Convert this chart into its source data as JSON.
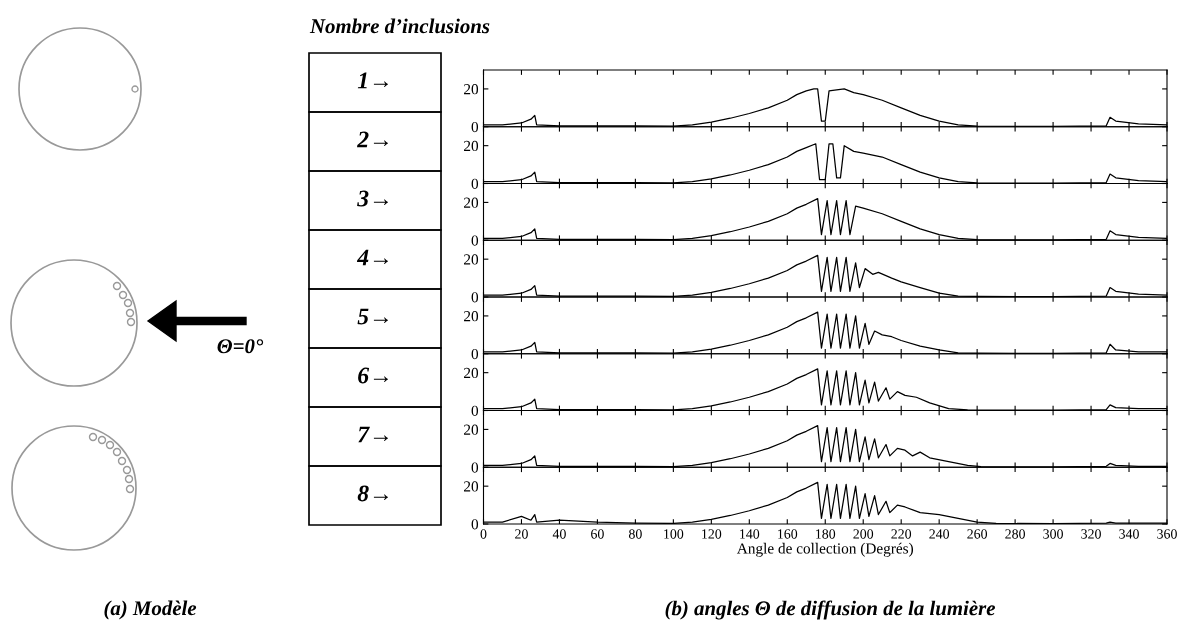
{
  "chart_data": [
    {
      "type": "line",
      "title": "Nombre d’inclusions",
      "annotations": [
        "1→",
        "Θ=0°",
        "(a) Modèle",
        "(b) angles Θ de diffusion de la lumière"
      ],
      "x": [
        0,
        10,
        20,
        25,
        27,
        28,
        40,
        60,
        80,
        100,
        110,
        120,
        130,
        140,
        150,
        160,
        165,
        170,
        174,
        176,
        178,
        180,
        182,
        190,
        195,
        200,
        210,
        220,
        230,
        240,
        250,
        260,
        300,
        328,
        330,
        333,
        345,
        360
      ],
      "series": [
        {
          "color": "#000000",
          "values": [
            1,
            1,
            2,
            4,
            6,
            1,
            0.5,
            0.5,
            0.5,
            0.3,
            1,
            2.5,
            4.5,
            7,
            10,
            14,
            17,
            19,
            20,
            20,
            3,
            3,
            19,
            20,
            18,
            17,
            14,
            10,
            6,
            3,
            1,
            0.3,
            0.2,
            0.5,
            5,
            3,
            1.5,
            1
          ]
        }
      ],
      "xlim": [
        0,
        360
      ],
      "ylim": [
        0,
        30
      ],
      "xticks": [
        0,
        20,
        40,
        60,
        80,
        100,
        120,
        140,
        160,
        180,
        200,
        220,
        240,
        260,
        280,
        300,
        320,
        340,
        360
      ],
      "yticks": [
        0,
        20
      ],
      "tick_labels": "y"
    },
    {
      "type": "line",
      "annotations": [
        "2→"
      ],
      "x": [
        0,
        10,
        20,
        25,
        27,
        28,
        40,
        60,
        80,
        100,
        110,
        120,
        130,
        140,
        150,
        160,
        165,
        170,
        175,
        177,
        180,
        182,
        184,
        186,
        188,
        190,
        195,
        200,
        210,
        220,
        230,
        240,
        250,
        260,
        300,
        328,
        330,
        333,
        345,
        360
      ],
      "series": [
        {
          "color": "#000000",
          "values": [
            1,
            1,
            2,
            4,
            6,
            1,
            0.5,
            0.5,
            0.5,
            0.3,
            1,
            2.5,
            4.5,
            7,
            10,
            14,
            17,
            19,
            21,
            2,
            2,
            21,
            21,
            3,
            3,
            20,
            17,
            16,
            14,
            10,
            6,
            3,
            1,
            0.3,
            0.2,
            0.5,
            5,
            3,
            1.5,
            1
          ]
        }
      ],
      "xlim": [
        0,
        360
      ],
      "ylim": [
        0,
        30
      ],
      "xticks": [
        0,
        20,
        40,
        60,
        80,
        100,
        120,
        140,
        160,
        180,
        200,
        220,
        240,
        260,
        280,
        300,
        320,
        340,
        360
      ],
      "yticks": [
        0,
        20
      ],
      "tick_labels": "y"
    },
    {
      "type": "line",
      "annotations": [
        "3→"
      ],
      "x": [
        0,
        10,
        20,
        25,
        27,
        28,
        40,
        60,
        80,
        100,
        110,
        120,
        130,
        140,
        150,
        160,
        165,
        170,
        176,
        178,
        181,
        183,
        186,
        188,
        191,
        193,
        196,
        200,
        210,
        220,
        230,
        240,
        250,
        260,
        300,
        328,
        330,
        333,
        345,
        360
      ],
      "series": [
        {
          "color": "#000000",
          "values": [
            1,
            1,
            2,
            4,
            6,
            1,
            0.5,
            0.5,
            0.5,
            0.3,
            1,
            2.5,
            4.5,
            7,
            10,
            14,
            17,
            19,
            22,
            3,
            21,
            3,
            21,
            3,
            21,
            3,
            18,
            17,
            14,
            10,
            6,
            3,
            1,
            0.3,
            0.2,
            0.5,
            5,
            3,
            1.5,
            1
          ]
        }
      ],
      "xlim": [
        0,
        360
      ],
      "ylim": [
        0,
        30
      ],
      "xticks": [
        0,
        20,
        40,
        60,
        80,
        100,
        120,
        140,
        160,
        180,
        200,
        220,
        240,
        260,
        280,
        300,
        320,
        340,
        360
      ],
      "yticks": [
        0,
        20
      ],
      "tick_labels": "y"
    },
    {
      "type": "line",
      "annotations": [
        "4→"
      ],
      "x": [
        0,
        10,
        20,
        25,
        27,
        28,
        40,
        60,
        80,
        100,
        110,
        120,
        130,
        140,
        150,
        160,
        165,
        170,
        176,
        178,
        181,
        183,
        186,
        188,
        191,
        193,
        196,
        198,
        201,
        205,
        208,
        215,
        220,
        230,
        240,
        250,
        260,
        300,
        328,
        330,
        333,
        345,
        360
      ],
      "series": [
        {
          "color": "#000000",
          "values": [
            1,
            1,
            2,
            4,
            6,
            1,
            0.5,
            0.5,
            0.5,
            0.3,
            1,
            2.5,
            4.5,
            7,
            10,
            14,
            17,
            19,
            22,
            3,
            21,
            3,
            21,
            3,
            21,
            3,
            18,
            5,
            15,
            12,
            13,
            10,
            8,
            5,
            2,
            0.5,
            0.3,
            0.2,
            0.5,
            5,
            3,
            1.5,
            1
          ]
        }
      ],
      "xlim": [
        0,
        360
      ],
      "ylim": [
        0,
        30
      ],
      "xticks": [
        0,
        20,
        40,
        60,
        80,
        100,
        120,
        140,
        160,
        180,
        200,
        220,
        240,
        260,
        280,
        300,
        320,
        340,
        360
      ],
      "yticks": [
        0,
        20
      ],
      "tick_labels": "y"
    },
    {
      "type": "line",
      "annotations": [
        "5→"
      ],
      "x": [
        0,
        10,
        20,
        25,
        27,
        28,
        40,
        60,
        80,
        100,
        110,
        120,
        130,
        140,
        150,
        160,
        165,
        170,
        176,
        178,
        181,
        183,
        186,
        188,
        191,
        193,
        196,
        198,
        201,
        203,
        206,
        210,
        215,
        220,
        230,
        240,
        250,
        260,
        300,
        328,
        330,
        333,
        345,
        360
      ],
      "series": [
        {
          "color": "#000000",
          "values": [
            1,
            1,
            2,
            4,
            6,
            1,
            0.5,
            0.5,
            0.5,
            0.3,
            1,
            2.5,
            4.5,
            7,
            10,
            14,
            17,
            19,
            22,
            3,
            21,
            3,
            21,
            3,
            21,
            3,
            20,
            3,
            16,
            5,
            12,
            10,
            9,
            7,
            4,
            2,
            0.5,
            0.3,
            0.2,
            0.5,
            5,
            2,
            1,
            1
          ]
        }
      ],
      "xlim": [
        0,
        360
      ],
      "ylim": [
        0,
        30
      ],
      "xticks": [
        0,
        20,
        40,
        60,
        80,
        100,
        120,
        140,
        160,
        180,
        200,
        220,
        240,
        260,
        280,
        300,
        320,
        340,
        360
      ],
      "yticks": [
        0,
        20
      ],
      "tick_labels": "y"
    },
    {
      "type": "line",
      "annotations": [
        "6→"
      ],
      "x": [
        0,
        10,
        20,
        25,
        27,
        28,
        40,
        60,
        80,
        100,
        110,
        120,
        130,
        140,
        150,
        160,
        165,
        170,
        176,
        178,
        181,
        183,
        186,
        188,
        191,
        193,
        196,
        198,
        201,
        203,
        206,
        208,
        212,
        214,
        218,
        222,
        228,
        235,
        245,
        255,
        300,
        328,
        330,
        333,
        345,
        360
      ],
      "series": [
        {
          "color": "#000000",
          "values": [
            1,
            1,
            2,
            4,
            6,
            1,
            0.5,
            0.5,
            0.5,
            0.3,
            1,
            2.5,
            4.5,
            7,
            10,
            14,
            17,
            19,
            22,
            3,
            21,
            3,
            21,
            3,
            21,
            3,
            20,
            3,
            16,
            4,
            15,
            5,
            12,
            6,
            10,
            8,
            7,
            4,
            1,
            0.3,
            0.2,
            0.5,
            3,
            1.5,
            1,
            1
          ]
        }
      ],
      "xlim": [
        0,
        360
      ],
      "ylim": [
        0,
        30
      ],
      "xticks": [
        0,
        20,
        40,
        60,
        80,
        100,
        120,
        140,
        160,
        180,
        200,
        220,
        240,
        260,
        280,
        300,
        320,
        340,
        360
      ],
      "yticks": [
        0,
        20
      ],
      "tick_labels": "y"
    },
    {
      "type": "line",
      "annotations": [
        "7→"
      ],
      "x": [
        0,
        10,
        20,
        25,
        27,
        28,
        40,
        60,
        80,
        100,
        110,
        120,
        130,
        140,
        150,
        160,
        165,
        170,
        176,
        178,
        181,
        183,
        186,
        188,
        191,
        193,
        196,
        198,
        201,
        203,
        206,
        208,
        212,
        214,
        218,
        222,
        226,
        230,
        235,
        245,
        255,
        262,
        300,
        328,
        330,
        333,
        345,
        360
      ],
      "series": [
        {
          "color": "#000000",
          "values": [
            1,
            1,
            2,
            4,
            6,
            1,
            0.5,
            0.5,
            0.5,
            0.3,
            1,
            2.5,
            4.5,
            7,
            10,
            14,
            17,
            19,
            22,
            3,
            21,
            3,
            21,
            3,
            21,
            3,
            20,
            3,
            16,
            4,
            15,
            5,
            12,
            6,
            10,
            9,
            6,
            8,
            5,
            3,
            1,
            0.3,
            0.2,
            0.5,
            2,
            1,
            0.5,
            0.5
          ]
        }
      ],
      "xlim": [
        0,
        360
      ],
      "ylim": [
        0,
        30
      ],
      "xticks": [
        0,
        20,
        40,
        60,
        80,
        100,
        120,
        140,
        160,
        180,
        200,
        220,
        240,
        260,
        280,
        300,
        320,
        340,
        360
      ],
      "yticks": [
        0,
        20
      ],
      "tick_labels": "y"
    },
    {
      "type": "line",
      "xlabel": "Angle de collection (Degrés)",
      "annotations": [
        "8→"
      ],
      "x": [
        0,
        10,
        20,
        25,
        27,
        28,
        40,
        60,
        80,
        100,
        110,
        120,
        130,
        140,
        150,
        160,
        165,
        170,
        176,
        178,
        181,
        183,
        186,
        188,
        191,
        193,
        196,
        198,
        201,
        203,
        206,
        208,
        212,
        214,
        218,
        222,
        230,
        240,
        250,
        260,
        270,
        300,
        328,
        330,
        333,
        345,
        360
      ],
      "series": [
        {
          "color": "#000000",
          "values": [
            1,
            1,
            4,
            2,
            5,
            1,
            2,
            1,
            0.5,
            0.3,
            1,
            2.5,
            4.5,
            7,
            10,
            14,
            17,
            19,
            22,
            3,
            21,
            3,
            21,
            3,
            21,
            3,
            20,
            3,
            16,
            4,
            15,
            5,
            12,
            6,
            10,
            9,
            6,
            5,
            3,
            1,
            0.3,
            0.2,
            0.5,
            1,
            0.5,
            0.5,
            0.5
          ]
        }
      ],
      "xlim": [
        0,
        360
      ],
      "ylim": [
        0,
        30
      ],
      "xticks": [
        0,
        20,
        40,
        60,
        80,
        100,
        120,
        140,
        160,
        180,
        200,
        220,
        240,
        260,
        280,
        300,
        320,
        340,
        360
      ],
      "yticks": [
        0,
        20
      ]
    }
  ]
}
